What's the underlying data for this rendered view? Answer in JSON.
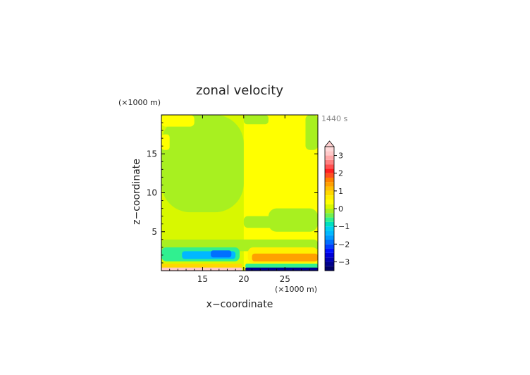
{
  "chart_data": {
    "type": "heatmap",
    "title": "zonal velocity",
    "time_label": "1440 s",
    "xlabel": "x−coordinate",
    "ylabel": "z−coordinate",
    "x_unit": "(×1000 m)",
    "y_unit": "(×1000 m)",
    "xlim": [
      10,
      29
    ],
    "ylim": [
      0,
      20
    ],
    "x_ticks": [
      15,
      20,
      25
    ],
    "y_ticks": [
      5,
      10,
      15
    ],
    "colorbar": {
      "range": [
        -3.5,
        3.5
      ],
      "tick_values": [
        -3,
        -2,
        -1,
        0,
        1,
        2,
        3
      ],
      "tick_labels": [
        "−3",
        "−2",
        "−1",
        "0",
        "1",
        "2",
        "3"
      ],
      "levels": [
        -3.5,
        -3.25,
        -3,
        -2.75,
        -2.5,
        -2.25,
        -2,
        -1.75,
        -1.5,
        -1.25,
        -1,
        -0.75,
        -0.5,
        -0.25,
        0,
        0.25,
        0.5,
        0.75,
        1,
        1.25,
        1.5,
        1.75,
        2,
        2.25,
        2.5,
        2.75,
        3,
        3.25,
        3.5
      ],
      "colors": [
        "#000066",
        "#00008c",
        "#0000b3",
        "#0000d9",
        "#0010ff",
        "#0040ff",
        "#0070ff",
        "#0099ff",
        "#00b8ff",
        "#00d0f0",
        "#00e0c0",
        "#30f090",
        "#70f050",
        "#a8f020",
        "#d8f800",
        "#ffff00",
        "#fff000",
        "#ffd800",
        "#ffc000",
        "#ffa000",
        "#ff8000",
        "#ff5020",
        "#ff2020",
        "#ff5050",
        "#ff8080",
        "#ffa8a8",
        "#ffc8c8",
        "#ffd8d8"
      ],
      "over_color": "#ffd0d0"
    },
    "regions": [
      {
        "x": [
          10,
          29
        ],
        "z": [
          0,
          20
        ],
        "value": 0.1
      },
      {
        "x": [
          20,
          29
        ],
        "z": [
          0,
          20
        ],
        "value": 0.3
      },
      {
        "x": [
          10,
          20
        ],
        "z": [
          7.5,
          20
        ],
        "value": -0.1
      },
      {
        "x": [
          10,
          14
        ],
        "z": [
          18.5,
          20
        ],
        "value": 0.3
      },
      {
        "x": [
          10,
          11
        ],
        "z": [
          15.5,
          17.5
        ],
        "value": 0.3
      },
      {
        "x": [
          27.5,
          29
        ],
        "z": [
          15.5,
          20
        ],
        "value": -0.1
      },
      {
        "x": [
          20,
          23
        ],
        "z": [
          18.8,
          20
        ],
        "value": -0.1
      },
      {
        "x": [
          20,
          26
        ],
        "z": [
          5.5,
          7
        ],
        "value": -0.1
      },
      {
        "x": [
          23,
          29
        ],
        "z": [
          5,
          8
        ],
        "value": -0.1
      },
      {
        "x": [
          10,
          29
        ],
        "z": [
          2.5,
          4
        ],
        "value": -0.1
      },
      {
        "x": [
          10,
          19.5
        ],
        "z": [
          1.2,
          3
        ],
        "value": -0.6
      },
      {
        "x": [
          12.5,
          19
        ],
        "z": [
          1.5,
          2.5
        ],
        "value": -1.3
      },
      {
        "x": [
          16,
          18.5
        ],
        "z": [
          1.7,
          2.6
        ],
        "value": -1.8
      },
      {
        "x": [
          20.5,
          29
        ],
        "z": [
          1,
          3
        ],
        "value": 0.7
      },
      {
        "x": [
          21,
          29
        ],
        "z": [
          1.2,
          2.2
        ],
        "value": 1.3
      },
      {
        "x": [
          10,
          19.8
        ],
        "z": [
          0.3,
          0.9
        ],
        "value": 0.9
      },
      {
        "x": [
          10,
          19.8
        ],
        "z": [
          0,
          0.4
        ],
        "value": 3.2
      },
      {
        "x": [
          20.2,
          29
        ],
        "z": [
          0.3,
          0.9
        ],
        "value": -0.7
      },
      {
        "x": [
          20.2,
          29
        ],
        "z": [
          0,
          0.4
        ],
        "value": -3.2
      }
    ]
  }
}
